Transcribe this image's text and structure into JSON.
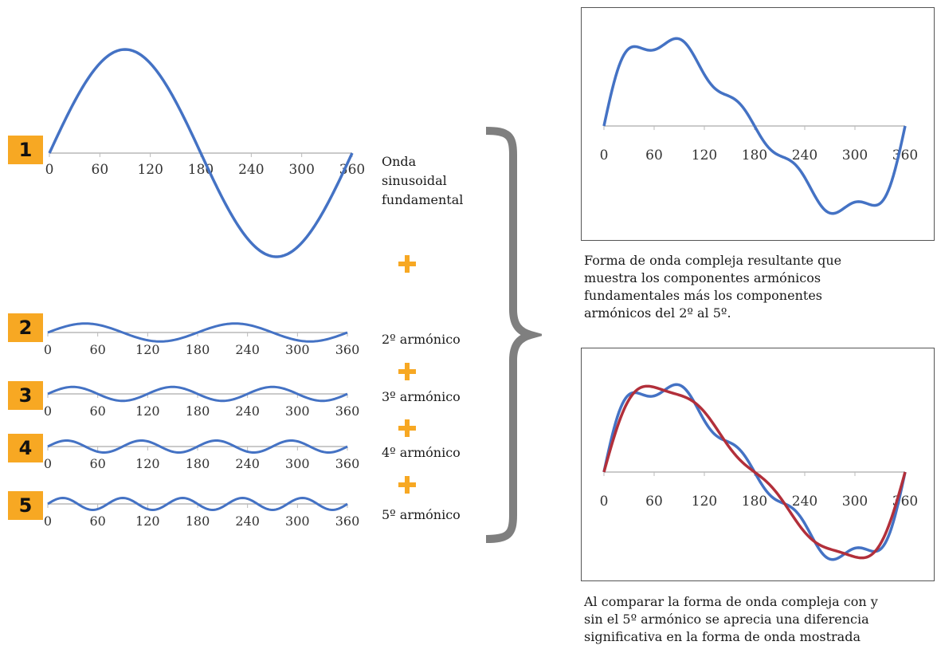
{
  "axis_ticks": [
    "0",
    "60",
    "120",
    "180",
    "240",
    "300",
    "360"
  ],
  "colors": {
    "wave": "#4472c4",
    "compare": "#b22f3a",
    "accent": "#f7a823",
    "brace": "#7f7f7f",
    "axis": "#b9b9b9"
  },
  "badges": [
    "1",
    "2",
    "3",
    "4",
    "5"
  ],
  "labels": {
    "fundamental": [
      "Onda",
      "sinusoidal",
      "fundamental"
    ],
    "h2": "2º armónico",
    "h3": "3º armónico",
    "h4": "4º armónico",
    "h5": "5º armónico"
  },
  "captions": {
    "top": [
      "Forma de onda compleja resultante que",
      "muestra los componentes armónicos",
      "fundamentales más los componentes",
      "armónicos del 2º al 5º."
    ],
    "bottom": [
      "Al comparar la forma de onda compleja con y",
      "sin el 5º armónico se aprecia una diferencia",
      "significativa en la forma de onda mostrada"
    ]
  },
  "chart_data": [
    {
      "type": "line",
      "name": "fundamental",
      "x_range": [
        0,
        360
      ],
      "harmonic": 1,
      "amplitude": 1
    },
    {
      "type": "line",
      "name": "2",
      "x_range": [
        0,
        360
      ],
      "harmonic": 2,
      "amplitude": 0.45
    },
    {
      "type": "line",
      "name": "3",
      "x_range": [
        0,
        360
      ],
      "harmonic": 3,
      "amplitude": 0.35
    },
    {
      "type": "line",
      "name": "4",
      "x_range": [
        0,
        360
      ],
      "harmonic": 4,
      "amplitude": 0.3
    },
    {
      "type": "line",
      "name": "5",
      "x_range": [
        0,
        360
      ],
      "harmonic": 5,
      "amplitude": 0.3
    },
    {
      "type": "line",
      "name": "complex",
      "x_range": [
        0,
        360
      ],
      "harmonics": [
        1,
        2,
        3,
        4,
        5
      ]
    },
    {
      "type": "line",
      "name": "comparison",
      "x_range": [
        0,
        360
      ],
      "series": [
        {
          "harmonics": [
            1,
            2,
            3,
            4,
            5
          ]
        },
        {
          "harmonics": [
            1,
            2,
            3,
            4
          ]
        }
      ]
    }
  ]
}
